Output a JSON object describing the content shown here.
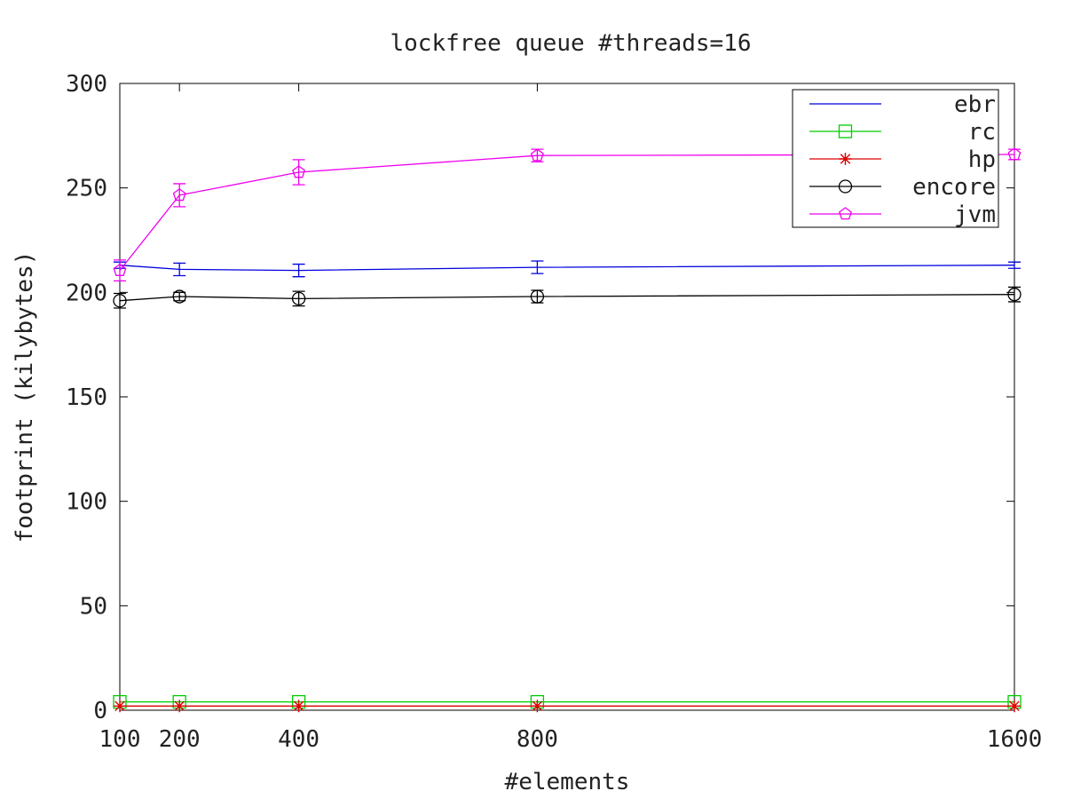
{
  "chart_data": {
    "type": "line",
    "title": "lockfree queue #threads=16",
    "xlabel": "#elements",
    "ylabel": "footprint (kilybytes)",
    "x": [
      100,
      200,
      400,
      800,
      1600
    ],
    "xticks": [
      "100",
      "200",
      "400",
      "800",
      "1600"
    ],
    "xlim": [
      100,
      1600
    ],
    "ylim": [
      0,
      300
    ],
    "yticks": [
      "0",
      "50",
      "100",
      "150",
      "200",
      "250",
      "300"
    ],
    "grid": false,
    "legend_position": "top-right",
    "series": [
      {
        "name": "ebr",
        "color": "#0000dd",
        "marker": "none",
        "values": [
          213,
          211,
          210.5,
          212,
          213
        ],
        "errors": [
          1.5,
          3,
          3,
          3,
          1.5
        ]
      },
      {
        "name": "rc",
        "color": "#00cc00",
        "marker": "square",
        "values": [
          4,
          4,
          4,
          4,
          4
        ],
        "errors": [
          0,
          0,
          0,
          0,
          0
        ]
      },
      {
        "name": "hp",
        "color": "#dd0000",
        "marker": "star",
        "values": [
          2,
          2,
          2,
          2,
          2
        ],
        "errors": [
          0,
          0,
          0,
          0,
          0
        ]
      },
      {
        "name": "encore",
        "color": "#000000",
        "marker": "circle",
        "values": [
          196,
          198,
          197,
          198,
          199
        ],
        "errors": [
          3.5,
          2,
          3.5,
          3,
          3.5
        ]
      },
      {
        "name": "jvm",
        "color": "#ee00ee",
        "marker": "pentagon",
        "values": [
          210.5,
          246.5,
          257.5,
          265.5,
          266
        ],
        "errors": [
          5,
          5.5,
          6,
          3,
          2.5
        ]
      }
    ]
  }
}
